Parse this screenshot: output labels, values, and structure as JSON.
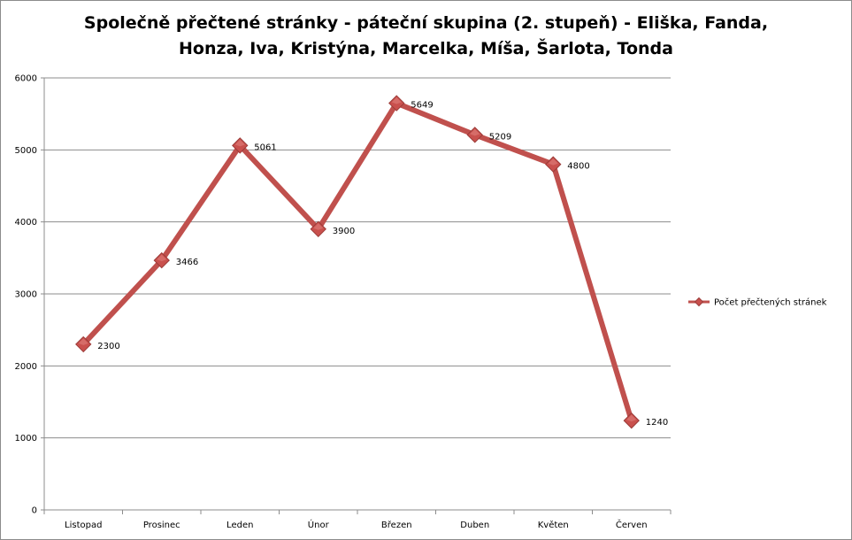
{
  "chart_data": {
    "type": "line",
    "title": "Společně přečtené stránky - páteční skupina (2. stupeň) - Eliška, Fanda,\nHonza, Iva, Kristýna, Marcelka, Míša, Šarlota, Tonda",
    "xlabel": "",
    "ylabel": "",
    "categories": [
      "Listopad",
      "Prosinec",
      "Leden",
      "Únor",
      "Březen",
      "Duben",
      "Květen",
      "Červen"
    ],
    "series": [
      {
        "name": "Počet přečtených stránek",
        "values": [
          2300,
          3466,
          5061,
          3900,
          5649,
          5209,
          4800,
          1240
        ],
        "color": "#c0504d",
        "marker": "diamond"
      }
    ],
    "ylim": [
      0,
      6000
    ],
    "yticks": [
      0,
      1000,
      2000,
      3000,
      4000,
      5000,
      6000
    ],
    "grid": true,
    "legend": "right",
    "data_labels": [
      "2300",
      "3466",
      "5061",
      "3900",
      "5649",
      "5209",
      "4800",
      "1240"
    ]
  }
}
